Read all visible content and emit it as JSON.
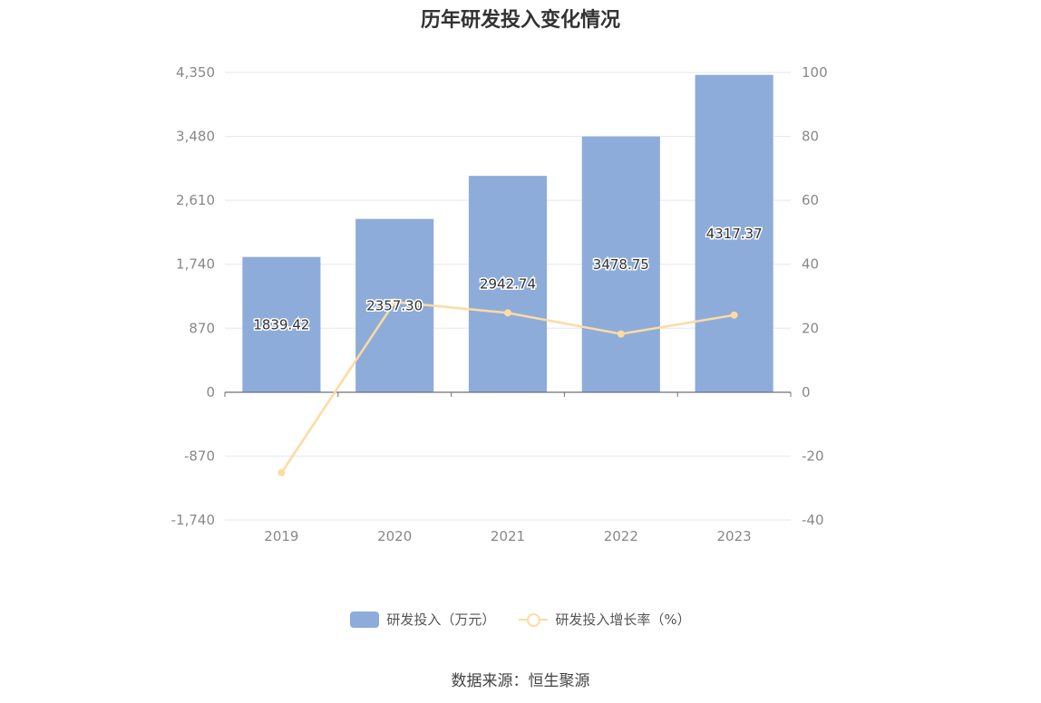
{
  "title": "历年研发投入变化情况",
  "source": "数据来源：恒生聚源",
  "colors": {
    "bar": "#8eacd9",
    "line": "#fddba2",
    "grid": "#e3e7ef",
    "axis": "#6e7079"
  },
  "legend": {
    "bar_label": "研发投入（万元）",
    "line_label": "研发投入增长率（%）"
  },
  "chart_data": {
    "type": "bar",
    "categories": [
      "2019",
      "2020",
      "2021",
      "2022",
      "2023"
    ],
    "series": [
      {
        "name": "研发投入（万元）",
        "type": "bar",
        "axis": "left",
        "values": [
          1839.42,
          2357.3,
          2942.74,
          3478.75,
          4317.37
        ],
        "labels": [
          "1839.42",
          "2357.30",
          "2942.74",
          "3478.75",
          "4317.37"
        ]
      },
      {
        "name": "研发投入增长率（%）",
        "type": "line",
        "axis": "right",
        "values": [
          -25.2,
          28.2,
          24.8,
          18.2,
          24.1
        ]
      }
    ],
    "left_axis": {
      "min": -1740,
      "max": 4350,
      "ticks": [
        4350,
        3480,
        2610,
        1740,
        870,
        0,
        -870,
        -1740
      ],
      "tick_labels": [
        "4,350",
        "3,480",
        "2,610",
        "1,740",
        "870",
        "0",
        "-870",
        "-1,740"
      ]
    },
    "right_axis": {
      "min": -40,
      "max": 100,
      "ticks": [
        100,
        80,
        60,
        40,
        20,
        0,
        -20,
        -40
      ],
      "tick_labels": [
        "100",
        "80",
        "60",
        "40",
        "20",
        "0",
        "-20",
        "-40"
      ]
    },
    "grid": true,
    "legend_position": "bottom"
  }
}
